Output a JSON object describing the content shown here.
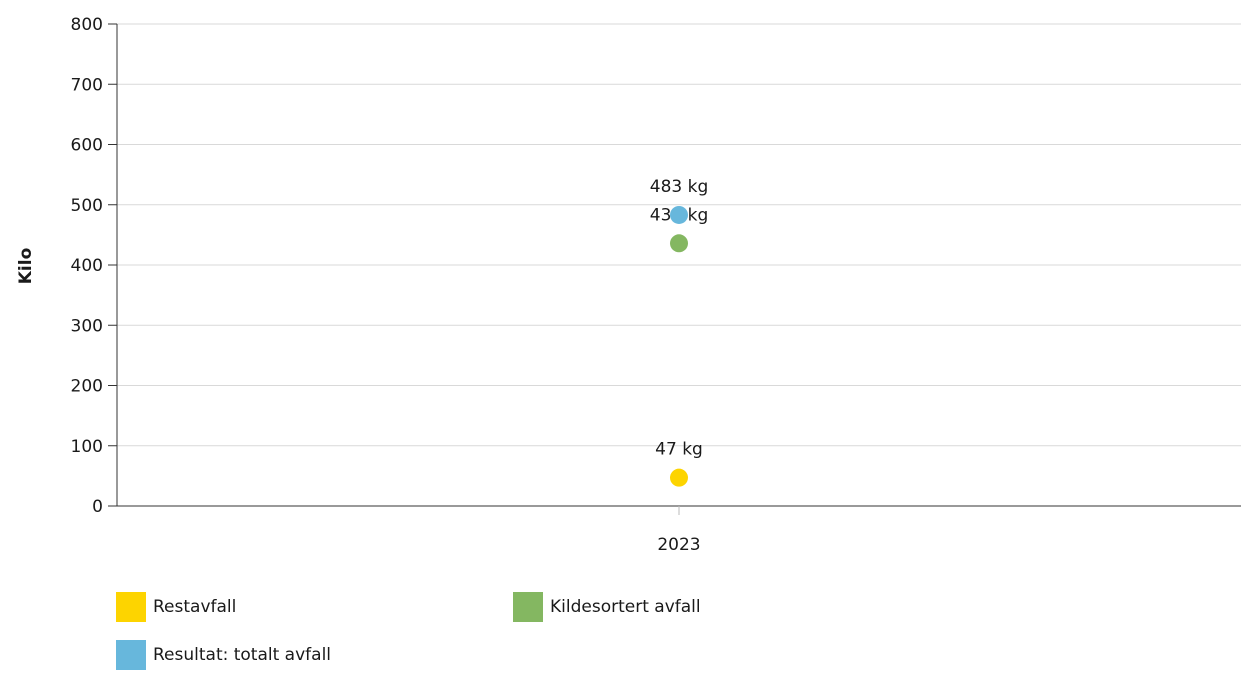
{
  "chart_data": {
    "type": "scatter",
    "ylabel": "Kilo",
    "ylim": [
      0,
      800
    ],
    "yticks": [
      0,
      100,
      200,
      300,
      400,
      500,
      600,
      700,
      800
    ],
    "categories": [
      "2023"
    ],
    "grid": true,
    "legend_position": "bottom",
    "series": [
      {
        "name": "Restavfall",
        "color": "#FDD400",
        "values": [
          47
        ],
        "labels": [
          "47 kg"
        ]
      },
      {
        "name": "Kildesortert avfall",
        "color": "#84B761",
        "values": [
          436
        ],
        "labels": [
          "436 kg"
        ]
      },
      {
        "name": "Resultat: totalt avfall",
        "color": "#67B7DC",
        "values": [
          483
        ],
        "labels": [
          "483 kg"
        ]
      }
    ]
  }
}
